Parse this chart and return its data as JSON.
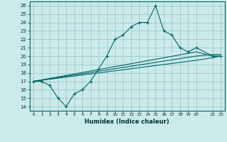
{
  "xlabel": "Humidex (Indice chaleur)",
  "bg_color": "#cceaea",
  "grid_color": "#99cccc",
  "line_color": "#006666",
  "xlim": [
    -0.5,
    23.5
  ],
  "ylim": [
    13.5,
    26.5
  ],
  "xticks": [
    0,
    1,
    2,
    3,
    4,
    5,
    6,
    7,
    8,
    9,
    10,
    11,
    12,
    13,
    14,
    15,
    16,
    17,
    18,
    19,
    20,
    22,
    23
  ],
  "yticks": [
    14,
    15,
    16,
    17,
    18,
    19,
    20,
    21,
    22,
    23,
    24,
    25,
    26
  ],
  "line1_x": [
    0,
    1,
    2,
    3,
    4,
    5,
    6,
    7,
    8,
    9,
    10,
    11,
    12,
    13,
    14,
    15,
    16,
    17,
    18,
    19,
    20,
    22,
    23
  ],
  "line1_y": [
    17,
    17,
    16.5,
    15,
    14,
    15.5,
    16,
    17,
    18.5,
    20,
    22,
    22.5,
    23.5,
    24,
    24,
    26,
    23,
    22.5,
    21,
    20.5,
    21,
    20,
    20
  ],
  "line2_x": [
    0,
    20,
    22,
    23
  ],
  "line2_y": [
    17,
    20.5,
    20,
    20
  ],
  "line3_x": [
    0,
    20,
    22,
    23
  ],
  "line3_y": [
    17,
    19.5,
    19.8,
    20
  ],
  "line4_x": [
    0,
    20,
    22,
    23
  ],
  "line4_y": [
    17,
    20,
    20.2,
    20.2
  ]
}
